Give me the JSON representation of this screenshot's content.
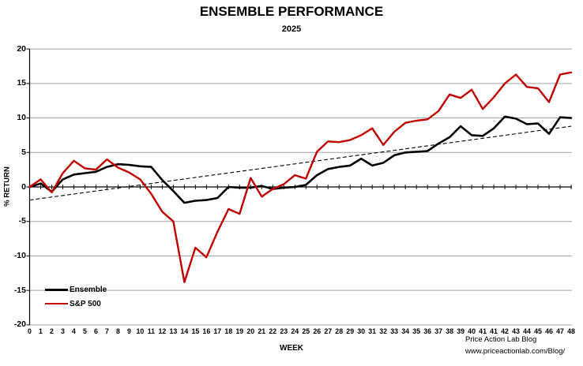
{
  "title": "ENSEMBLE PERFORMANCE",
  "subtitle": "2025",
  "footer": {
    "line1": "Price Action Lab Blog",
    "line2": "www.priceactionlab.com/Blog/"
  },
  "legend": {
    "entries": [
      {
        "label": "Ensemble",
        "color": "#000000"
      },
      {
        "label": "S&P 500",
        "color": "#c00000"
      }
    ]
  },
  "chart_data": {
    "type": "line",
    "title": "ENSEMBLE PERFORMANCE",
    "subtitle": "2025",
    "xlabel": "WEEK",
    "ylabel": "% RETURN",
    "ylim": [
      -20,
      20
    ],
    "ytick_step": 5,
    "grid": true,
    "legend_position": "inside-lower-left",
    "categories": [
      "0",
      "1",
      "2",
      "3",
      "4",
      "5",
      "6",
      "7",
      "8",
      "9",
      "10",
      "11",
      "12",
      "13",
      "14",
      "15",
      "16",
      "17",
      "18",
      "19",
      "20",
      "21",
      "22",
      "23",
      "24",
      "25",
      "26",
      "27",
      "28",
      "29",
      "30",
      "31",
      "32",
      "33",
      "34",
      "35",
      "36",
      "37",
      "38",
      "39",
      "40",
      "41",
      "41",
      "42",
      "43",
      "44",
      "45",
      "46",
      "47",
      "48"
    ],
    "series": [
      {
        "name": "Ensemble",
        "color": "#000000",
        "values": [
          0,
          0.5,
          -0.7,
          1.1,
          1.8,
          2.0,
          2.2,
          2.9,
          3.3,
          3.2,
          3.0,
          2.9,
          1.0,
          -0.6,
          -2.3,
          -2.0,
          -1.9,
          -1.6,
          0.0,
          -0.1,
          -0.1,
          0.15,
          -0.3,
          -0.1,
          0.0,
          0.3,
          1.7,
          2.6,
          2.9,
          3.1,
          4.1,
          3.1,
          3.5,
          4.6,
          5.0,
          5.1,
          5.2,
          6.3,
          7.2,
          8.8,
          7.5,
          7.4,
          8.5,
          10.2,
          9.9,
          9.1,
          9.2,
          7.7,
          10.1,
          10.0
        ]
      },
      {
        "name": "S&P 500",
        "color": "#c00000",
        "values": [
          0,
          1.1,
          -0.8,
          2.0,
          3.8,
          2.7,
          2.5,
          4.0,
          2.8,
          2.1,
          1.1,
          -1.0,
          -3.6,
          -5.0,
          -13.8,
          -8.8,
          -10.2,
          -6.5,
          -3.2,
          -3.9,
          1.3,
          -1.4,
          -0.3,
          0.4,
          1.7,
          1.2,
          5.1,
          6.6,
          6.5,
          6.8,
          7.5,
          8.5,
          6.1,
          8.0,
          9.3,
          9.6,
          9.8,
          11.0,
          13.4,
          12.9,
          14.1,
          11.3,
          13.0,
          15.0,
          16.3,
          14.5,
          14.3,
          12.3,
          16.3,
          16.6
        ]
      }
    ],
    "trendline": {
      "style": "dashed",
      "color": "#000000",
      "start_value": -1.9,
      "end_value": 8.8
    }
  }
}
